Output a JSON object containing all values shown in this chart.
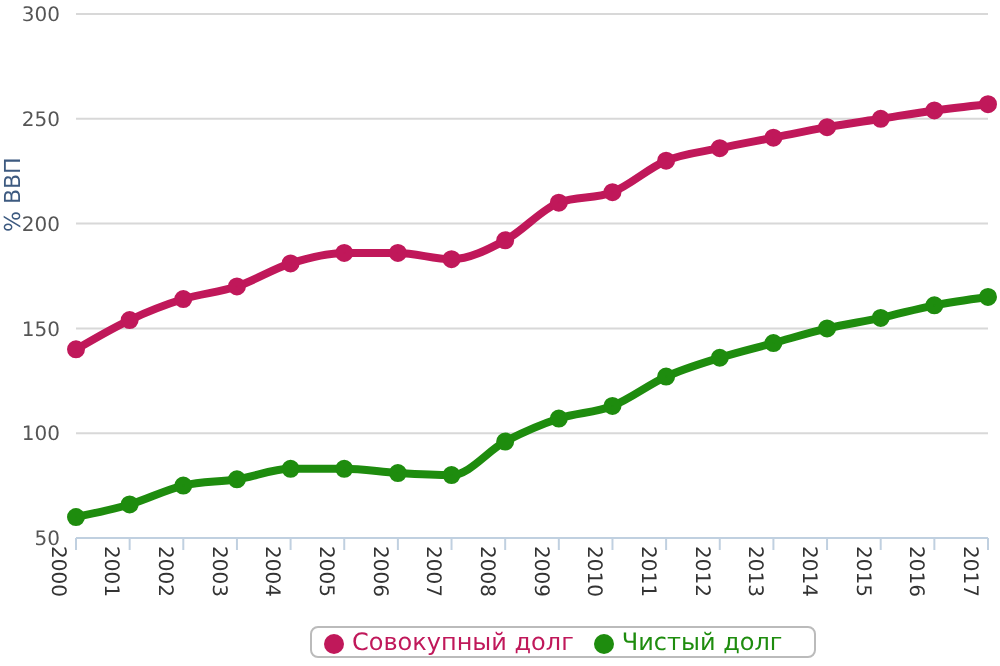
{
  "chart_data": {
    "type": "line",
    "ylabel": "% ВВП",
    "categories": [
      "2000",
      "2001",
      "2002",
      "2003",
      "2004",
      "2005",
      "2006",
      "2007",
      "2008",
      "2009",
      "2010",
      "2011",
      "2012",
      "2013",
      "2014",
      "2015",
      "2016",
      "2017"
    ],
    "series": [
      {
        "name": "Чистый долг",
        "color": "#1e8c0e",
        "values": [
          60,
          66,
          75,
          78,
          83,
          83,
          81,
          80,
          96,
          107,
          113,
          127,
          136,
          143,
          150,
          155,
          161,
          165
        ]
      },
      {
        "name": "Совокупный долг",
        "color": "#c0185a",
        "values": [
          140,
          154,
          164,
          170,
          181,
          186,
          186,
          183,
          192,
          210,
          215,
          230,
          236,
          241,
          246,
          250,
          254,
          257
        ]
      }
    ],
    "ylim": [
      50,
      300
    ],
    "yticks": [
      50,
      100,
      150,
      200,
      250,
      300
    ],
    "grid": "y",
    "legend": "bottom",
    "marker": "circle",
    "line_style": "solid"
  }
}
